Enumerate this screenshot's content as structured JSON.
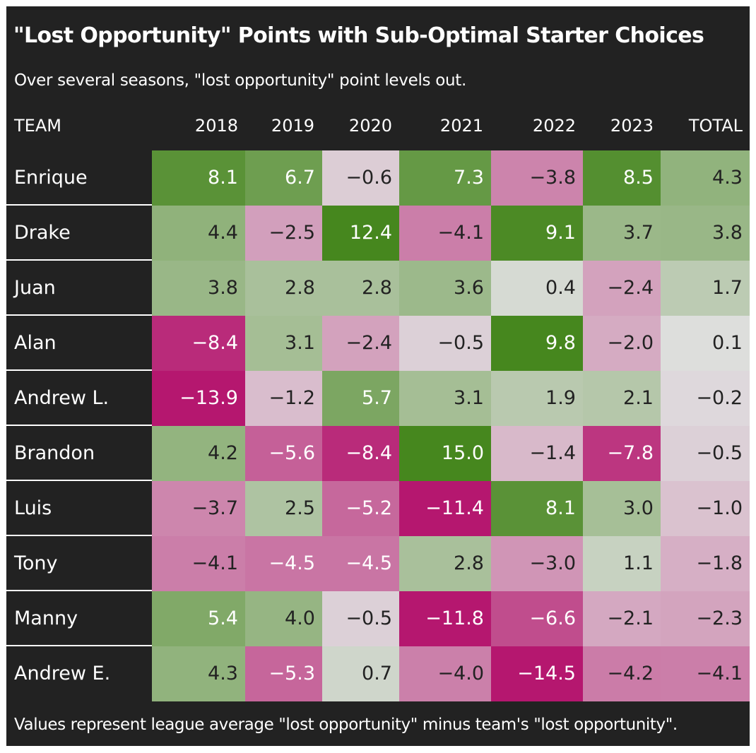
{
  "title": "\"Lost Opportunity\" Points with Sub-Optimal Starter Choices",
  "subtitle": "Over several seasons, \"lost opportunity\" point levels out.",
  "footer": "Values represent league average \"lost opportunity\" minus team's \"lost opportunity\".",
  "chart_data": {
    "type": "table",
    "columns": [
      "TEAM",
      "2018",
      "2019",
      "2020",
      "2021",
      "2022",
      "2023",
      "TOTAL"
    ],
    "color_scale": {
      "negative": "#b5176f",
      "neutral": "#e0e0e0",
      "positive": "#46871e"
    },
    "rows": [
      {
        "team": "Enrique",
        "values": [
          8.1,
          6.7,
          -0.6,
          7.3,
          -3.8,
          8.5,
          4.3
        ]
      },
      {
        "team": "Drake",
        "values": [
          4.4,
          -2.5,
          12.4,
          -4.1,
          9.1,
          3.7,
          3.8
        ]
      },
      {
        "team": "Juan",
        "values": [
          3.8,
          2.8,
          2.8,
          3.6,
          0.4,
          -2.4,
          1.7
        ]
      },
      {
        "team": "Alan",
        "values": [
          -8.4,
          3.1,
          -2.4,
          -0.5,
          9.8,
          -2.0,
          0.1
        ]
      },
      {
        "team": "Andrew L.",
        "values": [
          -13.9,
          -1.2,
          5.7,
          3.1,
          1.9,
          2.1,
          -0.2
        ]
      },
      {
        "team": "Brandon",
        "values": [
          4.2,
          -5.6,
          -8.4,
          15.0,
          -1.4,
          -7.8,
          -0.5
        ]
      },
      {
        "team": "Luis",
        "values": [
          -3.7,
          2.5,
          -5.2,
          -11.4,
          8.1,
          3.0,
          -1.0
        ]
      },
      {
        "team": "Tony",
        "values": [
          -4.1,
          -4.5,
          -4.5,
          2.8,
          -3.0,
          1.1,
          -1.8
        ]
      },
      {
        "team": "Manny",
        "values": [
          5.4,
          4.0,
          -0.5,
          -11.8,
          -6.6,
          -2.1,
          -2.3
        ]
      },
      {
        "team": "Andrew E.",
        "values": [
          4.3,
          -5.3,
          0.7,
          -4.0,
          -14.5,
          -4.2,
          -4.1
        ]
      }
    ]
  }
}
